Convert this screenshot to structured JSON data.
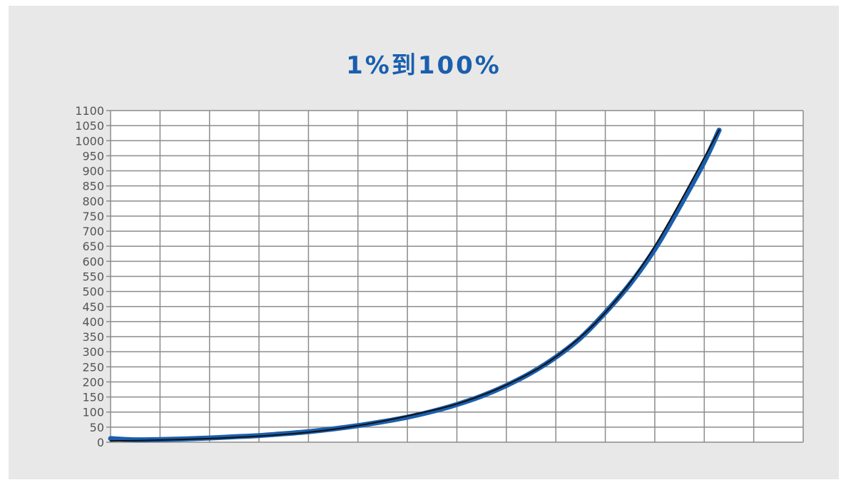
{
  "chart_data": {
    "type": "line",
    "title": "1%到100%",
    "xlabel": "",
    "ylabel": "",
    "ylim": [
      0,
      1100
    ],
    "y_ticks": [
      0,
      50,
      100,
      150,
      200,
      250,
      300,
      350,
      400,
      450,
      500,
      550,
      600,
      650,
      700,
      750,
      800,
      850,
      900,
      950,
      1000,
      1050,
      1100
    ],
    "x_tick_labels_shown": false,
    "grid": true,
    "legend": "none",
    "series": [
      {
        "color": "#1a5fae",
        "style": "thick",
        "points": [
          [
            0,
            12
          ],
          [
            0.5,
            8
          ],
          [
            1,
            9
          ],
          [
            1.5,
            11
          ],
          [
            2,
            14
          ],
          [
            2.5,
            18
          ],
          [
            3,
            22
          ],
          [
            3.5,
            28
          ],
          [
            4,
            35
          ],
          [
            4.5,
            44
          ],
          [
            5,
            55
          ],
          [
            5.5,
            68
          ],
          [
            6,
            83
          ],
          [
            6.5,
            102
          ],
          [
            7,
            125
          ],
          [
            7.5,
            153
          ],
          [
            8,
            188
          ],
          [
            8.5,
            230
          ],
          [
            9,
            282
          ],
          [
            9.5,
            346
          ],
          [
            10,
            430
          ],
          [
            10.5,
            525
          ],
          [
            11,
            640
          ],
          [
            11.5,
            780
          ],
          [
            12,
            930
          ],
          [
            12.3,
            1035
          ]
        ]
      },
      {
        "color": "#111111",
        "style": "thin",
        "points": [
          [
            0,
            4
          ],
          [
            1,
            7
          ],
          [
            2,
            12
          ],
          [
            3,
            20
          ],
          [
            4,
            33
          ],
          [
            5,
            55
          ],
          [
            6,
            87
          ],
          [
            7,
            127
          ],
          [
            8,
            190
          ],
          [
            9,
            283
          ],
          [
            10,
            430
          ],
          [
            11,
            650
          ],
          [
            12.3,
            1035
          ]
        ]
      }
    ]
  }
}
